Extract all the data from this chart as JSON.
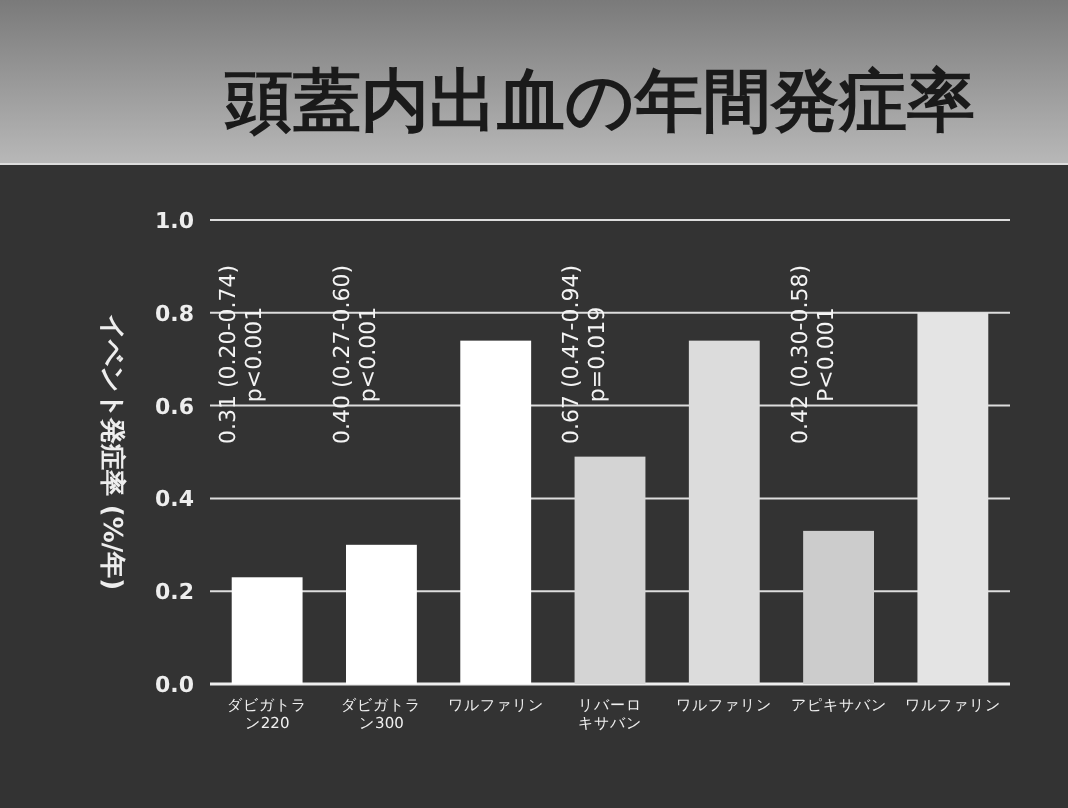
{
  "chart_data": {
    "type": "bar",
    "title": "頭蓋内出血の年間発症率",
    "ylabel": "イベント発症率 (%/年)",
    "categories": [
      "ダビガトラン220",
      "ダビガトラン300",
      "ワルファリン",
      "リバーロキサバン",
      "ワルファリン",
      "アピキサバン",
      "ワルファリン"
    ],
    "values": [
      0.23,
      0.3,
      0.74,
      0.49,
      0.74,
      0.33,
      0.8
    ],
    "colors": [
      "#ffffff",
      "#ffffff",
      "#ffffff",
      "#d4d4d4",
      "#dcdcdc",
      "#cccccc",
      "#e4e4e4"
    ],
    "ylim": [
      0,
      1
    ],
    "yticks": [
      {
        "value": 0,
        "label": "0.0"
      },
      0.2,
      0.4,
      0.6,
      0.8,
      {
        "value": 1,
        "label": "1.0"
      }
    ],
    "grid": "y",
    "annotations": [
      "0.31 (0.20-0.74)\np<0.001",
      "0.40 (0.27-0.60)\np<0.001",
      "0.67 (0.47-0.94)\np=0.019",
      "0.42 (0.30-0.58)\nP<0.001"
    ]
  }
}
